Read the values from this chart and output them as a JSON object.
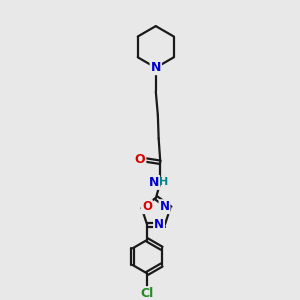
{
  "background_color": "#e8e8e8",
  "bond_color": "#1a1a1a",
  "N_color": "#0000cc",
  "O_color": "#dd0000",
  "Cl_color": "#228B22",
  "H_color": "#008888",
  "line_width": 1.6,
  "font_size_atom": 9.0,
  "fig_size": [
    3.0,
    3.0
  ],
  "dpi": 100,
  "xlim": [
    0,
    10
  ],
  "ylim": [
    0,
    10
  ]
}
